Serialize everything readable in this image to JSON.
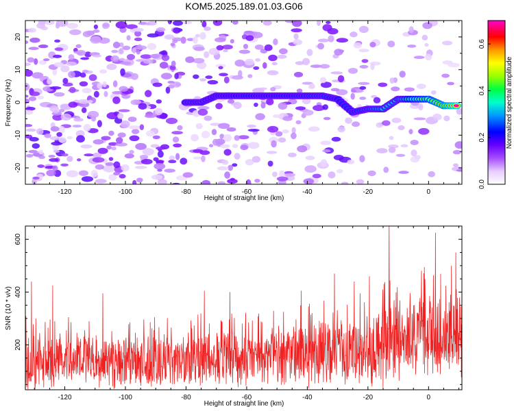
{
  "figure": {
    "title": "KOM5.2025.189.01.03.G06"
  },
  "colors": {
    "snr_line": "#ee2222",
    "frame": "#000000",
    "colormap": [
      "#ffffff",
      "#e6ccff",
      "#c080ff",
      "#7a00ff",
      "#0000ff",
      "#00ccff",
      "#00ff80",
      "#80ff00",
      "#ffff00",
      "#ff8000",
      "#ff0000",
      "#ff00ff"
    ]
  },
  "chart_data": [
    {
      "type": "heatmap",
      "title": "",
      "xlabel": "Height of straight line (km)",
      "ylabel": "Frequency (Hz)",
      "xlim": [
        -133,
        11
      ],
      "ylim": [
        -25,
        25
      ],
      "xticks": [
        -120,
        -100,
        -80,
        -60,
        -40,
        -20,
        0
      ],
      "yticks": [
        20,
        10,
        0,
        -10,
        -20
      ],
      "xtick_labels": [
        "-120",
        "-100",
        "-80",
        "-60",
        "-40",
        "-20",
        "0"
      ],
      "ytick_labels": [
        "20",
        "10",
        "0",
        "-10",
        "-20"
      ],
      "colorbar": {
        "label": "Normalized spectral amplitude",
        "range": [
          0,
          0.7
        ],
        "ticks": [
          0.0,
          0.2,
          0.4,
          0.6
        ],
        "tick_labels": [
          "0.0",
          "0.2",
          "0.4",
          "0.6"
        ]
      },
      "ridge": {
        "x": [
          -80,
          -75,
          -70,
          -65,
          -60,
          -55,
          -50,
          -45,
          -40,
          -35,
          -30,
          -25,
          -20,
          -15,
          -10,
          -5,
          0,
          5,
          10
        ],
        "freq": [
          0,
          0,
          2,
          2,
          2,
          2,
          2,
          2,
          2,
          2,
          1,
          -3,
          -2,
          -2,
          1,
          1,
          1,
          -1,
          -1
        ],
        "amplitude": [
          0.12,
          0.12,
          0.15,
          0.18,
          0.2,
          0.18,
          0.2,
          0.2,
          0.25,
          0.25,
          0.2,
          0.22,
          0.28,
          0.35,
          0.3,
          0.45,
          0.5,
          0.6,
          0.72
        ]
      }
    },
    {
      "type": "line",
      "title": "",
      "xlabel": "Height of straight line (km)",
      "ylabel": "SNR (10 * v/v)",
      "xlim": [
        -133,
        11
      ],
      "ylim": [
        30,
        650
      ],
      "xticks": [
        -120,
        -100,
        -80,
        -60,
        -40,
        -20,
        0
      ],
      "yticks": [
        200,
        400,
        600
      ],
      "xtick_labels": [
        "-120",
        "-100",
        "-80",
        "-60",
        "-40",
        "-20",
        "0"
      ],
      "ytick_labels": [
        "200",
        "400",
        "600"
      ],
      "series": [
        {
          "envelope_x": [
            -133,
            -120,
            -110,
            -100,
            -90,
            -80,
            -70,
            -60,
            -50,
            -40,
            -30,
            -25,
            -20,
            -15,
            -10,
            -5,
            0,
            5,
            10
          ],
          "baseline": [
            140,
            140,
            138,
            138,
            140,
            145,
            150,
            150,
            155,
            160,
            170,
            175,
            180,
            190,
            200,
            210,
            230,
            240,
            230
          ],
          "amplitude": [
            120,
            120,
            110,
            110,
            110,
            115,
            120,
            120,
            125,
            130,
            150,
            150,
            140,
            190,
            160,
            160,
            190,
            180,
            160
          ],
          "peaks": [
            {
              "x": -131.0,
              "y": 440
            },
            {
              "x": -124.0,
              "y": 425
            },
            {
              "x": -107.5,
              "y": 395
            },
            {
              "x": -74.0,
              "y": 405
            },
            {
              "x": -65.5,
              "y": 400
            },
            {
              "x": -42.0,
              "y": 405
            },
            {
              "x": -31.0,
              "y": 470
            },
            {
              "x": -24.5,
              "y": 440
            },
            {
              "x": -19.5,
              "y": 460
            },
            {
              "x": -13.0,
              "y": 655
            },
            {
              "x": 2.3,
              "y": 625
            },
            {
              "x": 7.5,
              "y": 500
            },
            {
              "x": 9.0,
              "y": 550
            }
          ]
        }
      ]
    }
  ]
}
